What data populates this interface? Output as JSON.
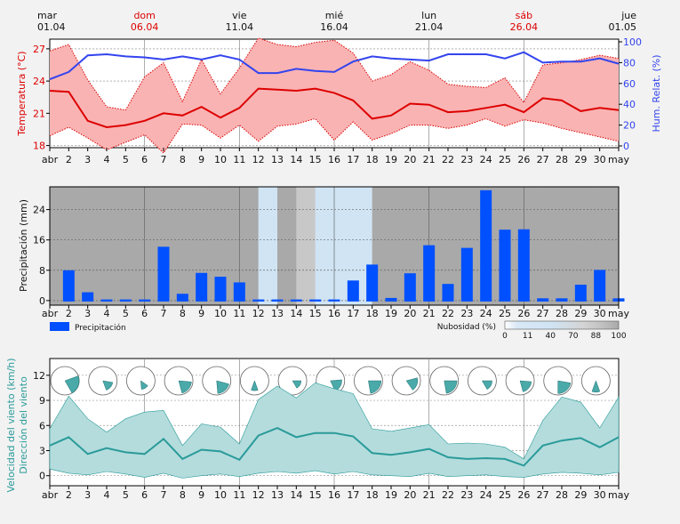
{
  "colors": {
    "temp": "#dd0000",
    "temp_fill": "#f9b3b3",
    "humidity": "#3344ee",
    "precip": "#0050ff",
    "wind": "#2a9a9a",
    "wind_fill": "#b4dcdc",
    "cloud_dark": "#a9a9a9",
    "cloud_light": "#d0e4f4",
    "weekend": "#dd0000"
  },
  "top_dates": [
    {
      "day": "mar",
      "date": "01.04",
      "weekend": false
    },
    {
      "day": "dom",
      "date": "06.04",
      "weekend": true
    },
    {
      "day": "vie",
      "date": "11.04",
      "weekend": false
    },
    {
      "day": "mié",
      "date": "16.04",
      "weekend": false
    },
    {
      "day": "lun",
      "date": "21.04",
      "weekend": false
    },
    {
      "day": "sáb",
      "date": "26.04",
      "weekend": true
    },
    {
      "day": "jue",
      "date": "01.05",
      "weekend": false
    }
  ],
  "x_labels": [
    "abr",
    "2",
    "3",
    "4",
    "5",
    "6",
    "7",
    "8",
    "9",
    "10",
    "11",
    "12",
    "13",
    "14",
    "15",
    "16",
    "17",
    "18",
    "19",
    "20",
    "21",
    "22",
    "23",
    "24",
    "25",
    "26",
    "27",
    "28",
    "29",
    "30",
    "may"
  ],
  "chart_data": [
    {
      "type": "line",
      "title": "",
      "x": [
        "01.04",
        "02.04",
        "03.04",
        "04.04",
        "05.04",
        "06.04",
        "07.04",
        "08.04",
        "09.04",
        "10.04",
        "11.04",
        "12.04",
        "13.04",
        "14.04",
        "15.04",
        "16.04",
        "17.04",
        "18.04",
        "19.04",
        "20.04",
        "21.04",
        "22.04",
        "23.04",
        "24.04",
        "25.04",
        "26.04",
        "27.04",
        "28.04",
        "29.04",
        "30.04",
        "01.05"
      ],
      "ylabel_left": "Temperatura (°C)",
      "ylabel_right": "Hum. Relat. (%)",
      "ylim_left": [
        17.8,
        27.9
      ],
      "yticks_left": [
        18,
        21,
        24,
        27
      ],
      "ylim_right": [
        0,
        100
      ],
      "yticks_right": [
        0,
        20,
        40,
        60,
        80,
        100
      ],
      "series": [
        {
          "name": "",
          "role": "temp_mean",
          "values": [
            23.1,
            23.0,
            20.3,
            19.7,
            19.9,
            20.3,
            21.0,
            20.8,
            21.6,
            20.6,
            21.5,
            23.3,
            23.2,
            23.1,
            23.3,
            22.9,
            22.2,
            20.5,
            20.8,
            21.9,
            21.8,
            21.1,
            21.2,
            21.5,
            21.8,
            21.1,
            22.4,
            22.2,
            21.2,
            21.5,
            21.3
          ]
        },
        {
          "name": "",
          "role": "temp_max",
          "values": [
            26.8,
            27.4,
            24.1,
            21.6,
            21.3,
            24.4,
            25.7,
            22.1,
            26.0,
            22.8,
            25.2,
            28.0,
            27.4,
            27.2,
            27.6,
            27.8,
            26.6,
            24.0,
            24.6,
            25.8,
            25.0,
            23.7,
            23.5,
            23.4,
            24.3,
            22.0,
            25.5,
            25.7,
            26.0,
            26.4,
            26.1
          ]
        },
        {
          "name": "",
          "role": "temp_min",
          "values": [
            18.9,
            19.7,
            18.7,
            17.6,
            18.3,
            19.0,
            17.3,
            20.0,
            19.9,
            18.7,
            19.9,
            18.4,
            19.8,
            20.0,
            20.5,
            18.5,
            20.2,
            18.5,
            19.1,
            19.9,
            19.9,
            19.6,
            19.9,
            20.5,
            19.8,
            20.4,
            20.1,
            19.6,
            19.2,
            18.8,
            18.4
          ]
        },
        {
          "name": "",
          "role": "humidity",
          "values": [
            64,
            71,
            87,
            88,
            86,
            85,
            83,
            86,
            83,
            87,
            83,
            70,
            70,
            74,
            72,
            71,
            81,
            86,
            84,
            83,
            82,
            88,
            88,
            88,
            84,
            90,
            80,
            81,
            81,
            84,
            79
          ]
        }
      ]
    },
    {
      "type": "bar",
      "title": "",
      "ylabel": "Precipitación (mm)",
      "ylim": [
        -1.2,
        30
      ],
      "yticks": [
        0,
        8,
        16,
        24
      ],
      "categories": [
        "01.04",
        "02.04",
        "03.04",
        "04.04",
        "05.04",
        "06.04",
        "07.04",
        "08.04",
        "09.04",
        "10.04",
        "11.04",
        "12.04",
        "13.04",
        "14.04",
        "15.04",
        "16.04",
        "17.04",
        "18.04",
        "19.04",
        "20.04",
        "21.04",
        "22.04",
        "23.04",
        "24.04",
        "25.04",
        "26.04",
        "27.04",
        "28.04",
        "29.04",
        "30.04",
        "01.05"
      ],
      "series": [
        {
          "name": "Precipitación",
          "values": [
            null,
            8.0,
            2.2,
            0,
            0,
            0,
            14.2,
            1.8,
            7.3,
            6.3,
            4.8,
            0,
            0,
            0,
            0.2,
            0,
            5.3,
            9.5,
            0.7,
            7.2,
            14.6,
            4.4,
            13.9,
            29.1,
            18.7,
            18.8,
            0.6,
            0.6,
            4.2,
            8.1,
            0.6
          ]
        }
      ],
      "cloud_legend": {
        "label": "Nubosidad (%)",
        "ticks": [
          "0",
          "11",
          "40",
          "70",
          "88",
          "100"
        ]
      },
      "cloud_cover": [
        95,
        70,
        92,
        95,
        95,
        85,
        92,
        95,
        95,
        92,
        90,
        30,
        75,
        60,
        20,
        10,
        30,
        85,
        80,
        90,
        92,
        75,
        95,
        95,
        95,
        95,
        92,
        80,
        95,
        92
      ]
    },
    {
      "type": "line",
      "title": "",
      "ylabel": "Velocidad del viento (km/h)",
      "ylabel2": "Dirección del viento",
      "ylim": [
        -1.2,
        14
      ],
      "yticks": [
        0,
        3,
        6,
        9,
        12
      ],
      "x": [
        "01.04",
        "02.04",
        "03.04",
        "04.04",
        "05.04",
        "06.04",
        "07.04",
        "08.04",
        "09.04",
        "10.04",
        "11.04",
        "12.04",
        "13.04",
        "14.04",
        "15.04",
        "16.04",
        "17.04",
        "18.04",
        "19.04",
        "20.04",
        "21.04",
        "22.04",
        "23.04",
        "24.04",
        "25.04",
        "26.04",
        "27.04",
        "28.04",
        "29.04",
        "30.04",
        "01.05"
      ],
      "series": [
        {
          "name": "",
          "role": "wind_mean",
          "values": [
            3.6,
            4.6,
            2.6,
            3.3,
            2.8,
            2.6,
            4.4,
            2.0,
            3.1,
            2.9,
            1.9,
            4.8,
            5.7,
            4.6,
            5.1,
            5.1,
            4.7,
            2.7,
            2.5,
            2.8,
            3.2,
            2.2,
            2.0,
            2.1,
            2.0,
            1.2,
            3.6,
            4.2,
            4.5,
            3.4,
            4.6
          ]
        },
        {
          "name": "",
          "role": "wind_max",
          "values": [
            5.6,
            9.5,
            6.8,
            5.2,
            6.8,
            7.6,
            7.8,
            3.6,
            6.2,
            5.8,
            3.8,
            9.1,
            10.7,
            9.3,
            11.1,
            10.4,
            9.8,
            5.6,
            5.3,
            5.7,
            6.1,
            3.8,
            3.9,
            3.8,
            3.4,
            2.0,
            6.6,
            9.4,
            8.8,
            5.7,
            9.4
          ]
        },
        {
          "name": "",
          "role": "wind_min",
          "values": [
            0.8,
            0.3,
            0.1,
            0.5,
            0.2,
            -0.2,
            0.3,
            -0.3,
            0.0,
            0.2,
            -0.1,
            0.3,
            0.5,
            0.3,
            0.6,
            0.2,
            0.5,
            0.1,
            0.0,
            -0.1,
            0.3,
            -0.1,
            0.0,
            0.1,
            -0.1,
            -0.2,
            0.2,
            0.4,
            0.3,
            0.1,
            0.4
          ]
        }
      ],
      "wind_roses": [
        {
          "dir": 110,
          "span": 80,
          "len": 1.0
        },
        {
          "dir": 130,
          "span": 60,
          "len": 0.7
        },
        {
          "dir": 150,
          "span": 50,
          "len": 0.6
        },
        {
          "dir": 130,
          "span": 70,
          "len": 0.9
        },
        {
          "dir": 140,
          "span": 70,
          "len": 0.9
        },
        {
          "dir": 180,
          "span": 40,
          "len": 0.7
        },
        {
          "dir": 120,
          "span": 60,
          "len": 0.6
        },
        {
          "dir": 120,
          "span": 70,
          "len": 0.8
        },
        {
          "dir": 130,
          "span": 80,
          "len": 0.9
        },
        {
          "dir": 110,
          "span": 70,
          "len": 0.8
        },
        {
          "dir": 130,
          "span": 80,
          "len": 0.9
        },
        {
          "dir": 120,
          "span": 60,
          "len": 0.7
        },
        {
          "dir": 130,
          "span": 70,
          "len": 0.8
        },
        {
          "dir": 140,
          "span": 80,
          "len": 0.9
        },
        {
          "dir": 180,
          "span": 40,
          "len": 0.8
        }
      ]
    }
  ]
}
